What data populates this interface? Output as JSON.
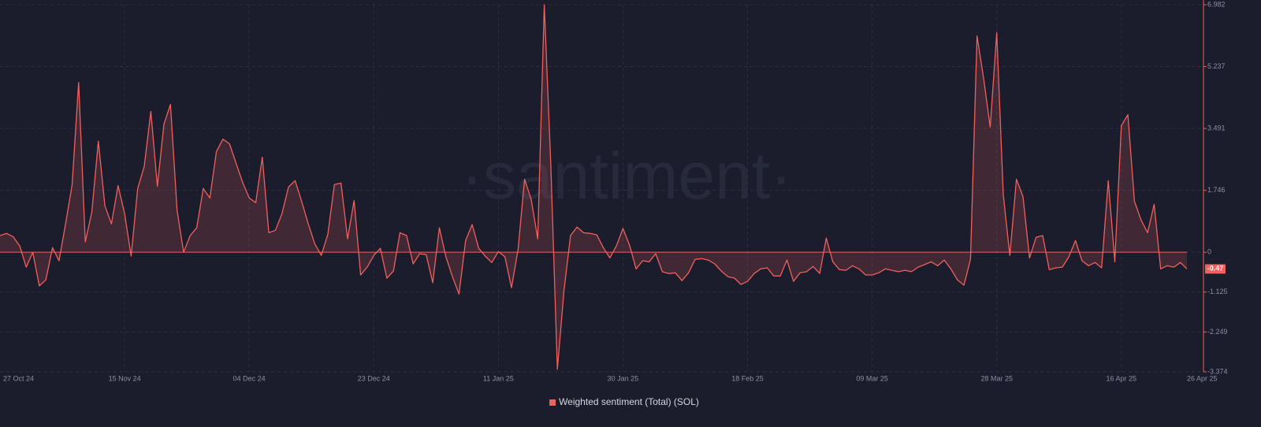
{
  "chart_data": {
    "type": "line",
    "watermark": "·santiment·",
    "categories": [
      "27 Oct 24",
      null,
      null,
      null,
      null,
      null,
      null,
      null,
      null,
      null,
      null,
      null,
      null,
      null,
      null,
      null,
      null,
      null,
      null,
      "15 Nov 24",
      null,
      null,
      null,
      null,
      null,
      null,
      null,
      null,
      null,
      null,
      null,
      null,
      null,
      null,
      null,
      null,
      null,
      null,
      "04 Dec 24",
      null,
      null,
      null,
      null,
      null,
      null,
      null,
      null,
      null,
      null,
      null,
      null,
      null,
      null,
      null,
      null,
      null,
      null,
      "23 Dec 24",
      null,
      null,
      null,
      null,
      null,
      null,
      null,
      null,
      null,
      null,
      null,
      null,
      null,
      null,
      null,
      null,
      null,
      null,
      "11 Jan 25",
      null,
      null,
      null,
      null,
      null,
      null,
      null,
      null,
      null,
      null,
      null,
      null,
      null,
      null,
      null,
      null,
      null,
      null,
      "30 Jan 25",
      null,
      null,
      null,
      null,
      null,
      null,
      null,
      null,
      null,
      null,
      null,
      null,
      null,
      null,
      null,
      null,
      null,
      null,
      "18 Feb 25",
      null,
      null,
      null,
      null,
      null,
      null,
      null,
      null,
      null,
      null,
      null,
      null,
      null,
      null,
      null,
      null,
      null,
      null,
      "09 Mar 25",
      null,
      null,
      null,
      null,
      null,
      null,
      null,
      null,
      null,
      null,
      null,
      null,
      null,
      null,
      null,
      null,
      null,
      null,
      "28 Mar 25",
      null,
      null,
      null,
      null,
      null,
      null,
      null,
      null,
      null,
      null,
      null,
      null,
      null,
      null,
      null,
      null,
      null,
      null,
      "16 Apr 25",
      null,
      null,
      null,
      null,
      null,
      null,
      null,
      null,
      null,
      "26 Apr 25"
    ],
    "series": [
      {
        "name": "Weighted sentiment (Total) (SOL)",
        "color": "#f0605d",
        "values": [
          0.47,
          0.53,
          0.44,
          0.18,
          -0.42,
          0,
          -0.95,
          -0.78,
          0.13,
          -0.24,
          0.8,
          1.9,
          4.79,
          0.29,
          1.13,
          3.13,
          1.31,
          0.8,
          1.88,
          1.09,
          -0.11,
          1.8,
          2.42,
          3.97,
          1.86,
          3.61,
          4.17,
          1.18,
          0,
          0.47,
          0.69,
          1.8,
          1.53,
          2.84,
          3.19,
          3.06,
          2.51,
          1.97,
          1.53,
          1.4,
          2.68,
          0.55,
          0.62,
          1.09,
          1.84,
          2.02,
          1.44,
          0.8,
          0.24,
          -0.09,
          0.51,
          1.91,
          1.95,
          0.38,
          1.46,
          -0.64,
          -0.42,
          -0.09,
          0.11,
          -0.73,
          -0.53,
          0.55,
          0.47,
          -0.33,
          -0.04,
          -0.07,
          -0.86,
          0.69,
          -0.13,
          -0.69,
          -1.18,
          0.33,
          0.78,
          0.11,
          -0.11,
          -0.29,
          0.02,
          -0.13,
          -1.0,
          0.07,
          2.06,
          1.49,
          0.38,
          6.98,
          2.46,
          -3.3,
          -1.09,
          0.47,
          0.71,
          0.55,
          0.53,
          0.49,
          0.13,
          -0.16,
          0.18,
          0.67,
          0.2,
          -0.47,
          -0.24,
          -0.27,
          -0.04,
          -0.55,
          -0.6,
          -0.58,
          -0.8,
          -0.58,
          -0.2,
          -0.18,
          -0.22,
          -0.33,
          -0.53,
          -0.69,
          -0.73,
          -0.91,
          -0.82,
          -0.6,
          -0.47,
          -0.44,
          -0.67,
          -0.67,
          -0.22,
          -0.82,
          -0.58,
          -0.55,
          -0.4,
          -0.6,
          0.4,
          -0.27,
          -0.49,
          -0.51,
          -0.38,
          -0.47,
          -0.64,
          -0.64,
          -0.58,
          -0.47,
          -0.51,
          -0.55,
          -0.51,
          -0.55,
          -0.42,
          -0.35,
          -0.27,
          -0.38,
          -0.22,
          -0.47,
          -0.78,
          -0.93,
          -0.2,
          6.1,
          4.9,
          3.53,
          6.19,
          1.62,
          -0.09,
          2.06,
          1.57,
          -0.16,
          0.42,
          0.47,
          -0.49,
          -0.44,
          -0.42,
          -0.13,
          0.33,
          -0.24,
          -0.38,
          -0.29,
          -0.44,
          2.02,
          -0.27,
          3.57,
          3.88,
          1.44,
          0.91,
          0.55,
          1.35,
          -0.47,
          -0.38,
          -0.42,
          -0.29,
          -0.47
        ]
      }
    ],
    "ylim": [
      -3.374,
      6.982
    ],
    "yticks": [
      6.982,
      5.237,
      3.491,
      1.746,
      0,
      -1.125,
      -2.249,
      -3.374
    ],
    "grid": true
  }
}
